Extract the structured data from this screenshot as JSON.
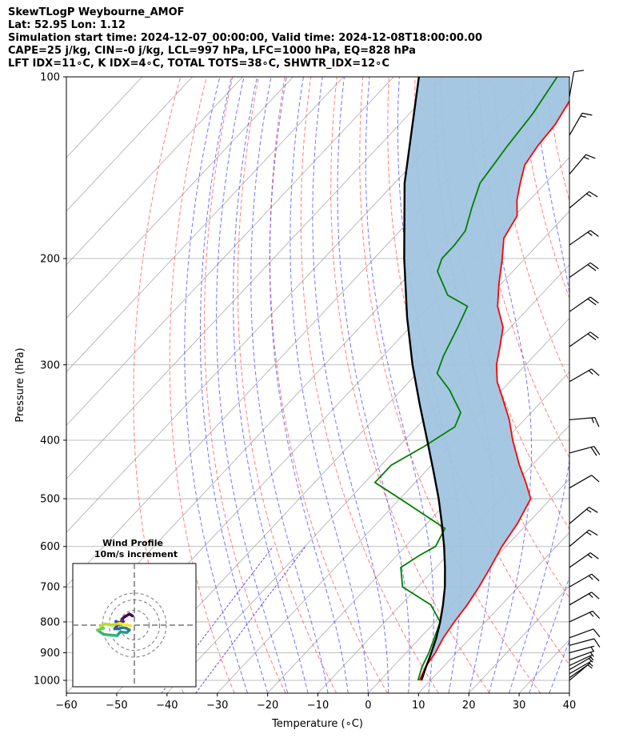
{
  "header": {
    "line1": "SkewTLogP Weybourne_AMOF",
    "line2": "Lat: 52.95   Lon: 1.12",
    "line3": "Simulation start time: 2024-12-07_00:00:00, Valid time: 2024-12-08T18:00:00.00",
    "line4": "CAPE=25 j/kg, CIN=-0 j/kg, LCL=997 hPa, LFC=1000 hPa, EQ=828 hPa",
    "line5": "LFT IDX=11∘C, K IDX=4∘C, TOTAL TOTS=38∘C, SHWTR_IDX=12∘C"
  },
  "chart_data": {
    "type": "line",
    "xlabel": "Temperature (∘C)",
    "ylabel": "Pressure (hPa)",
    "xlim": [
      -60,
      40
    ],
    "ylim": [
      1050,
      100
    ],
    "y_scale": "log",
    "x_ticks": [
      "−60",
      "−50",
      "−40",
      "−30",
      "−20",
      "−10",
      "0",
      "10",
      "20",
      "30",
      "40"
    ],
    "x_tick_values": [
      -60,
      -50,
      -40,
      -30,
      -20,
      -10,
      0,
      10,
      20,
      30,
      40
    ],
    "y_ticks": [
      "100",
      "200",
      "300",
      "400",
      "500",
      "600",
      "700",
      "800",
      "900",
      "1000"
    ],
    "y_tick_values": [
      100,
      200,
      300,
      400,
      500,
      600,
      700,
      800,
      900,
      1000
    ],
    "grid": true,
    "colors": {
      "temperature": "#ff0000",
      "dewpoint": "#008000",
      "parcel": "#000000",
      "shade": "#a0c4df",
      "dry_adiabat": "#ff6666",
      "moist_adiabat": "#4444ff",
      "mixing_ratio": "#7744cc",
      "isotherm": "#aaaaaa"
    },
    "temperature_profile": [
      [
        1000,
        7.8
      ],
      [
        950,
        6.5
      ],
      [
        900,
        5.8
      ],
      [
        850,
        4.6
      ],
      [
        800,
        3.8
      ],
      [
        750,
        3.2
      ],
      [
        700,
        2.2
      ],
      [
        650,
        0.8
      ],
      [
        600,
        -0.8
      ],
      [
        550,
        -2.0
      ],
      [
        500,
        -4.0
      ],
      [
        470,
        -8.0
      ],
      [
        440,
        -12.5
      ],
      [
        400,
        -18.5
      ],
      [
        370,
        -23.0
      ],
      [
        340,
        -28.5
      ],
      [
        320,
        -32.5
      ],
      [
        300,
        -35.8
      ],
      [
        280,
        -38.5
      ],
      [
        260,
        -41.5
      ],
      [
        240,
        -46.5
      ],
      [
        220,
        -50.5
      ],
      [
        200,
        -54.5
      ],
      [
        185,
        -58.0
      ],
      [
        170,
        -59.5
      ],
      [
        160,
        -62.5
      ],
      [
        150,
        -65.0
      ],
      [
        140,
        -67.5
      ],
      [
        130,
        -68.5
      ],
      [
        120,
        -69.0
      ],
      [
        110,
        -70.5
      ],
      [
        100,
        -72.0
      ]
    ],
    "dewpoint_profile": [
      [
        1000,
        7.5
      ],
      [
        950,
        5.8
      ],
      [
        900,
        4.5
      ],
      [
        850,
        2.8
      ],
      [
        800,
        1.0
      ],
      [
        750,
        -4.0
      ],
      [
        700,
        -13.0
      ],
      [
        650,
        -17.0
      ],
      [
        620,
        -15.5
      ],
      [
        600,
        -14.0
      ],
      [
        560,
        -15.5
      ],
      [
        500,
        -30.0
      ],
      [
        470,
        -38.0
      ],
      [
        440,
        -38.0
      ],
      [
        410,
        -35.0
      ],
      [
        380,
        -32.5
      ],
      [
        360,
        -34.0
      ],
      [
        330,
        -40.5
      ],
      [
        310,
        -46.0
      ],
      [
        290,
        -48.0
      ],
      [
        260,
        -50.5
      ],
      [
        240,
        -52.5
      ],
      [
        230,
        -58.5
      ],
      [
        210,
        -65.0
      ],
      [
        200,
        -66.5
      ],
      [
        190,
        -66.5
      ],
      [
        180,
        -67.0
      ],
      [
        165,
        -70.0
      ],
      [
        150,
        -73.0
      ],
      [
        130,
        -74.5
      ],
      [
        115,
        -75.5
      ],
      [
        100,
        -77.5
      ]
    ],
    "parcel_profile": [
      [
        1000,
        8.2
      ],
      [
        950,
        6.6
      ],
      [
        900,
        5.0
      ],
      [
        850,
        3.2
      ],
      [
        800,
        1.0
      ],
      [
        750,
        -1.6
      ],
      [
        700,
        -4.6
      ],
      [
        650,
        -8.2
      ],
      [
        600,
        -12.3
      ],
      [
        550,
        -17.0
      ],
      [
        500,
        -22.3
      ],
      [
        450,
        -28.5
      ],
      [
        400,
        -35.5
      ],
      [
        350,
        -43.5
      ],
      [
        300,
        -52.5
      ],
      [
        250,
        -62.5
      ],
      [
        200,
        -74.0
      ],
      [
        150,
        -88.0
      ],
      [
        100,
        -105.0
      ]
    ],
    "wind_barbs": [
      {
        "p": 1000,
        "speed": 3,
        "dir": 230
      },
      {
        "p": 990,
        "speed": 5,
        "dir": 235
      },
      {
        "p": 975,
        "speed": 5,
        "dir": 240
      },
      {
        "p": 960,
        "speed": 6,
        "dir": 240
      },
      {
        "p": 945,
        "speed": 7,
        "dir": 245
      },
      {
        "p": 925,
        "speed": 8,
        "dir": 250
      },
      {
        "p": 900,
        "speed": 8,
        "dir": 255
      },
      {
        "p": 875,
        "speed": 10,
        "dir": 255
      },
      {
        "p": 850,
        "speed": 10,
        "dir": 250
      },
      {
        "p": 800,
        "speed": 15,
        "dir": 245
      },
      {
        "p": 750,
        "speed": 15,
        "dir": 240
      },
      {
        "p": 700,
        "speed": 15,
        "dir": 240
      },
      {
        "p": 650,
        "speed": 15,
        "dir": 235
      },
      {
        "p": 600,
        "speed": 15,
        "dir": 230
      },
      {
        "p": 550,
        "speed": 15,
        "dir": 230
      },
      {
        "p": 480,
        "speed": 10,
        "dir": 240
      },
      {
        "p": 420,
        "speed": 20,
        "dir": 255
      },
      {
        "p": 370,
        "speed": 15,
        "dir": 265
      },
      {
        "p": 320,
        "speed": 15,
        "dir": 240
      },
      {
        "p": 280,
        "speed": 20,
        "dir": 235
      },
      {
        "p": 245,
        "speed": 20,
        "dir": 235
      },
      {
        "p": 215,
        "speed": 20,
        "dir": 235
      },
      {
        "p": 190,
        "speed": 15,
        "dir": 235
      },
      {
        "p": 165,
        "speed": 15,
        "dir": 230
      },
      {
        "p": 145,
        "speed": 15,
        "dir": 220
      },
      {
        "p": 125,
        "speed": 15,
        "dir": 210
      },
      {
        "p": 108,
        "speed": 10,
        "dir": 190
      }
    ],
    "inset": {
      "title_line1": "Wind Profile",
      "title_line2": "10m/s increment",
      "hodograph": [
        [
          -0.3,
          -1.5
        ],
        [
          -0.8,
          -1.8
        ],
        [
          -1.5,
          -1.4
        ],
        [
          -2.0,
          -1.0
        ],
        [
          -1.8,
          -0.6
        ],
        [
          -2.5,
          -0.4
        ],
        [
          -3.0,
          -0.6
        ],
        [
          -2.8,
          0.1
        ],
        [
          -3.2,
          0.6
        ],
        [
          -2.6,
          0.6
        ],
        [
          -2.0,
          0.4
        ],
        [
          -1.3,
          0.5
        ],
        [
          -0.8,
          0.8
        ],
        [
          -1.2,
          1.2
        ],
        [
          -2.3,
          1.1
        ],
        [
          -2.8,
          1.7
        ],
        [
          -4.0,
          1.6
        ],
        [
          -5.0,
          1.5
        ],
        [
          -6.0,
          0.8
        ],
        [
          -5.0,
          0.5
        ],
        [
          -5.5,
          0.2
        ],
        [
          -4.8,
          -0.2
        ],
        [
          -3.6,
          0.0
        ],
        [
          -2.4,
          -0.3
        ],
        [
          -1.6,
          -0.1
        ],
        [
          -0.6,
          0.1
        ]
      ]
    }
  }
}
